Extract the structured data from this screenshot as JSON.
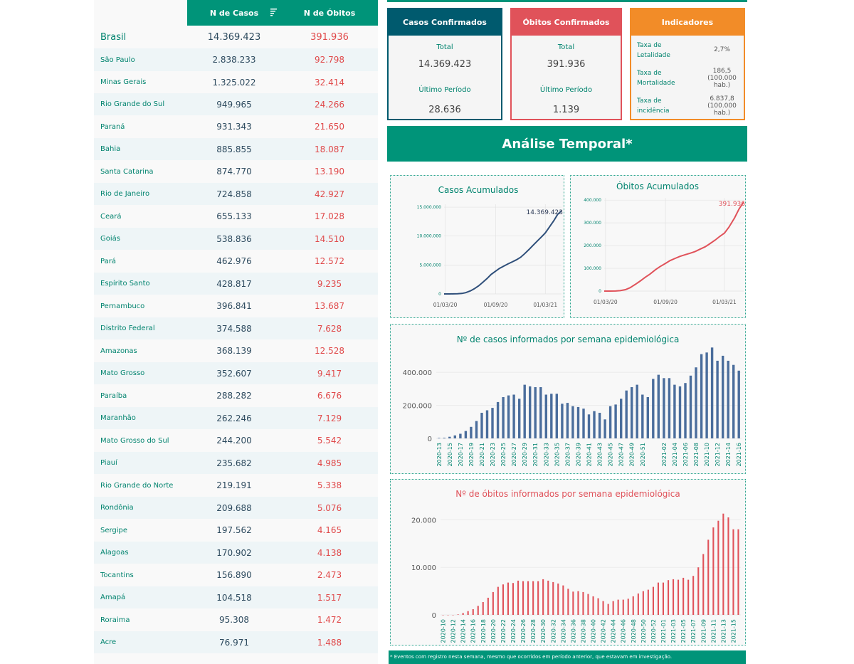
{
  "table": {
    "header": {
      "cases": "N de Casos",
      "deaths": "N de Óbitos"
    },
    "rows": [
      {
        "name": "Brasil",
        "cases": "14.369.423",
        "deaths": "391.936"
      },
      {
        "name": "São Paulo",
        "cases": "2.838.233",
        "deaths": "92.798"
      },
      {
        "name": "Minas Gerais",
        "cases": "1.325.022",
        "deaths": "32.414"
      },
      {
        "name": "Rio Grande do Sul",
        "cases": "949.965",
        "deaths": "24.266"
      },
      {
        "name": "Paraná",
        "cases": "931.343",
        "deaths": "21.650"
      },
      {
        "name": "Bahia",
        "cases": "885.855",
        "deaths": "18.087"
      },
      {
        "name": "Santa Catarina",
        "cases": "874.770",
        "deaths": "13.190"
      },
      {
        "name": "Rio de Janeiro",
        "cases": "724.858",
        "deaths": "42.927"
      },
      {
        "name": "Ceará",
        "cases": "655.133",
        "deaths": "17.028"
      },
      {
        "name": "Goiás",
        "cases": "538.836",
        "deaths": "14.510"
      },
      {
        "name": "Pará",
        "cases": "462.976",
        "deaths": "12.572"
      },
      {
        "name": "Espírito Santo",
        "cases": "428.817",
        "deaths": "9.235"
      },
      {
        "name": "Pernambuco",
        "cases": "396.841",
        "deaths": "13.687"
      },
      {
        "name": "Distrito Federal",
        "cases": "374.588",
        "deaths": "7.628"
      },
      {
        "name": "Amazonas",
        "cases": "368.139",
        "deaths": "12.528"
      },
      {
        "name": "Mato Grosso",
        "cases": "352.607",
        "deaths": "9.417"
      },
      {
        "name": "Paraíba",
        "cases": "288.282",
        "deaths": "6.676"
      },
      {
        "name": "Maranhão",
        "cases": "262.246",
        "deaths": "7.129"
      },
      {
        "name": "Mato Grosso do Sul",
        "cases": "244.200",
        "deaths": "5.542"
      },
      {
        "name": "Piauí",
        "cases": "235.682",
        "deaths": "4.985"
      },
      {
        "name": "Rio Grande do Norte",
        "cases": "219.191",
        "deaths": "5.338"
      },
      {
        "name": "Rondônia",
        "cases": "209.688",
        "deaths": "5.076"
      },
      {
        "name": "Sergipe",
        "cases": "197.562",
        "deaths": "4.165"
      },
      {
        "name": "Alagoas",
        "cases": "170.902",
        "deaths": "4.138"
      },
      {
        "name": "Tocantins",
        "cases": "156.890",
        "deaths": "2.473"
      },
      {
        "name": "Amapá",
        "cases": "104.518",
        "deaths": "1.517"
      },
      {
        "name": "Roraima",
        "cases": "95.308",
        "deaths": "1.472"
      },
      {
        "name": "Acre",
        "cases": "76.971",
        "deaths": "1.488"
      }
    ]
  },
  "cards": {
    "cases": {
      "title": "Casos Confirmados",
      "total_label": "Total",
      "total": "14.369.423",
      "period_label": "Último Período",
      "period": "28.636"
    },
    "deaths": {
      "title": "Óbitos Confirmados",
      "total_label": "Total",
      "total": "391.936",
      "period_label": "Último Período",
      "period": "1.139"
    },
    "indicators": {
      "title": "Indicadores",
      "items": [
        {
          "label": "Taxa de Letalidade",
          "value": "2,7%"
        },
        {
          "label": "Taxa de Mortalidade",
          "value": "186,5 (100.000 hab.)"
        },
        {
          "label": "Taxa de incidência",
          "value": "6.837,8 (100.000 hab.)"
        }
      ]
    }
  },
  "banner": "Análise Temporal*",
  "footnote": "* Eventos com registro nesta semana, mesmo que ocorridos em período anterior, que estavam em investigação.",
  "colors": {
    "green": "#009479",
    "dark_teal": "#005a6e",
    "red": "#e0525a",
    "orange": "#f28c28",
    "blue_series": "#4a6d9c"
  },
  "chart_data": [
    {
      "type": "line",
      "title": "Casos Acumulados",
      "x": [
        "2020-02-26",
        "2020-03-15",
        "2020-04-01",
        "2020-04-15",
        "2020-05-01",
        "2020-05-15",
        "2020-06-01",
        "2020-06-15",
        "2020-07-01",
        "2020-07-15",
        "2020-08-01",
        "2020-08-15",
        "2020-09-01",
        "2020-09-15",
        "2020-10-01",
        "2020-10-15",
        "2020-11-01",
        "2020-11-15",
        "2020-12-01",
        "2020-12-15",
        "2021-01-01",
        "2021-01-15",
        "2021-02-01",
        "2021-02-15",
        "2021-03-01",
        "2021-03-15",
        "2021-04-01",
        "2021-04-15",
        "2021-04-29"
      ],
      "values": [
        0,
        200,
        6800,
        28300,
        91600,
        218000,
        526000,
        888000,
        1403000,
        1967000,
        2667000,
        3340000,
        3951000,
        4419000,
        4811000,
        5170000,
        5545000,
        5877000,
        6336000,
        6929000,
        7700000,
        8390000,
        9204000,
        9866000,
        10551000,
        11520000,
        12660000,
        13750000,
        14369423
      ],
      "x_ticks": [
        "01/03/20",
        "01/09/20",
        "01/03/21"
      ],
      "y_ticks": [
        "0",
        "5.000.000",
        "10.000.000",
        "15.000.000"
      ],
      "ylim": [
        0,
        15500000
      ],
      "end_label": "14.369.423"
    },
    {
      "type": "line",
      "title": "Óbitos Acumulados",
      "x": [
        "2020-02-26",
        "2020-03-15",
        "2020-04-01",
        "2020-04-15",
        "2020-05-01",
        "2020-05-15",
        "2020-06-01",
        "2020-06-15",
        "2020-07-01",
        "2020-07-15",
        "2020-08-01",
        "2020-08-15",
        "2020-09-01",
        "2020-09-15",
        "2020-10-01",
        "2020-10-15",
        "2020-11-01",
        "2020-11-15",
        "2020-12-01",
        "2020-12-15",
        "2021-01-01",
        "2021-01-15",
        "2021-02-01",
        "2021-02-15",
        "2021-03-01",
        "2021-03-15",
        "2021-04-01",
        "2021-04-15",
        "2021-04-29"
      ],
      "values": [
        0,
        0,
        240,
        1900,
        6300,
        14800,
        29900,
        43900,
        60700,
        74100,
        93600,
        107200,
        121600,
        134000,
        143900,
        152500,
        160200,
        166100,
        174000,
        183700,
        195000,
        208100,
        225100,
        240900,
        255000,
        281700,
        322000,
        361900,
        391936
      ],
      "x_ticks": [
        "01/03/20",
        "01/09/20",
        "01/03/21"
      ],
      "y_ticks": [
        "0",
        "100.000",
        "200.000",
        "300.000",
        "400.000"
      ],
      "ylim": [
        0,
        410000
      ],
      "end_label": "391.936"
    },
    {
      "type": "bar",
      "title": "Nº de casos informados por semana epidemiológica",
      "categories": [
        "2020-13",
        "2020-14",
        "2020-15",
        "2020-16",
        "2020-17",
        "2020-18",
        "2020-19",
        "2020-20",
        "2020-21",
        "2020-22",
        "2020-23",
        "2020-24",
        "2020-25",
        "2020-26",
        "2020-27",
        "2020-28",
        "2020-29",
        "2020-30",
        "2020-31",
        "2020-32",
        "2020-33",
        "2020-34",
        "2020-35",
        "2020-36",
        "2020-37",
        "2020-38",
        "2020-39",
        "2020-40",
        "2020-41",
        "2020-42",
        "2020-43",
        "2020-44",
        "2020-45",
        "2020-46",
        "2020-47",
        "2020-48",
        "2020-49",
        "2020-50",
        "2020-51",
        "2020-52",
        "2020-53",
        "2021-01",
        "2021-02",
        "2021-03",
        "2021-04",
        "2021-05",
        "2021-06",
        "2021-07",
        "2021-08",
        "2021-09",
        "2021-10",
        "2021-11",
        "2021-12",
        "2021-13",
        "2021-14",
        "2021-15",
        "2021-16"
      ],
      "x_tick_labels": [
        "2020-13",
        "2020-15",
        "2020-17",
        "2020-19",
        "2020-21",
        "2020-23",
        "2020-25",
        "2020-27",
        "2020-29",
        "2020-31",
        "2020-33",
        "2020-35",
        "2020-37",
        "2020-39",
        "2020-41",
        "2020-43",
        "2020-45",
        "2020-47",
        "2020-49",
        "2020-51",
        "2021-02",
        "2021-04",
        "2021-06",
        "2021-08",
        "2021-10",
        "2021-12",
        "2021-14",
        "2021-16"
      ],
      "values": [
        3000,
        4000,
        10000,
        18000,
        28000,
        45000,
        70000,
        105000,
        155000,
        170000,
        185000,
        220000,
        250000,
        260000,
        265000,
        240000,
        325000,
        315000,
        310000,
        310000,
        265000,
        270000,
        270000,
        210000,
        215000,
        195000,
        190000,
        180000,
        145000,
        165000,
        155000,
        115000,
        195000,
        205000,
        240000,
        290000,
        310000,
        325000,
        265000,
        250000,
        360000,
        385000,
        365000,
        365000,
        325000,
        315000,
        335000,
        380000,
        430000,
        510000,
        520000,
        550000,
        470000,
        500000,
        470000,
        445000,
        410000
      ],
      "y_ticks": [
        "0",
        "200.000",
        "400.000"
      ],
      "ylim": [
        0,
        560000
      ]
    },
    {
      "type": "bar",
      "title": "Nº de óbitos informados por semana epidemiológica",
      "categories": [
        "2020-10",
        "2020-11",
        "2020-12",
        "2020-13",
        "2020-14",
        "2020-15",
        "2020-16",
        "2020-17",
        "2020-18",
        "2020-19",
        "2020-20",
        "2020-21",
        "2020-22",
        "2020-23",
        "2020-24",
        "2020-25",
        "2020-26",
        "2020-27",
        "2020-28",
        "2020-29",
        "2020-30",
        "2020-31",
        "2020-32",
        "2020-33",
        "2020-34",
        "2020-35",
        "2020-36",
        "2020-37",
        "2020-38",
        "2020-39",
        "2020-40",
        "2020-41",
        "2020-42",
        "2020-43",
        "2020-44",
        "2020-45",
        "2020-46",
        "2020-47",
        "2020-48",
        "2020-49",
        "2020-50",
        "2020-51",
        "2020-52",
        "2020-53",
        "2021-01",
        "2021-02",
        "2021-03",
        "2021-04",
        "2021-05",
        "2021-06",
        "2021-07",
        "2021-08",
        "2021-09",
        "2021-10",
        "2021-11",
        "2021-12",
        "2021-13",
        "2021-14",
        "2021-15",
        "2021-16"
      ],
      "x_tick_labels": [
        "2020-10",
        "2020-12",
        "2020-14",
        "2020-16",
        "2020-18",
        "2020-20",
        "2020-22",
        "2020-24",
        "2020-26",
        "2020-28",
        "2020-30",
        "2020-32",
        "2020-34",
        "2020-36",
        "2020-38",
        "2020-40",
        "2020-42",
        "2020-44",
        "2020-46",
        "2020-48",
        "2020-50",
        "2020-52",
        "2021-01",
        "2021-03",
        "2021-05",
        "2021-07",
        "2021-09",
        "2021-11",
        "2021-13",
        "2021-15"
      ],
      "values": [
        0,
        0,
        0,
        100,
        400,
        800,
        1200,
        1900,
        2700,
        3600,
        4800,
        5900,
        6400,
        6800,
        6700,
        7200,
        7100,
        7100,
        7100,
        7100,
        7500,
        7200,
        6900,
        6600,
        6200,
        5500,
        4900,
        5000,
        4800,
        4400,
        3900,
        3500,
        2900,
        2300,
        2900,
        3200,
        3200,
        3400,
        3900,
        4500,
        5000,
        5300,
        5900,
        6800,
        6800,
        7300,
        7500,
        7400,
        7800,
        7400,
        8200,
        10000,
        12800,
        15800,
        18400,
        19800,
        21300,
        20500,
        18000,
        18000
      ],
      "y_ticks": [
        "0",
        "10.000",
        "20.000"
      ],
      "ylim": [
        0,
        22000
      ]
    }
  ]
}
